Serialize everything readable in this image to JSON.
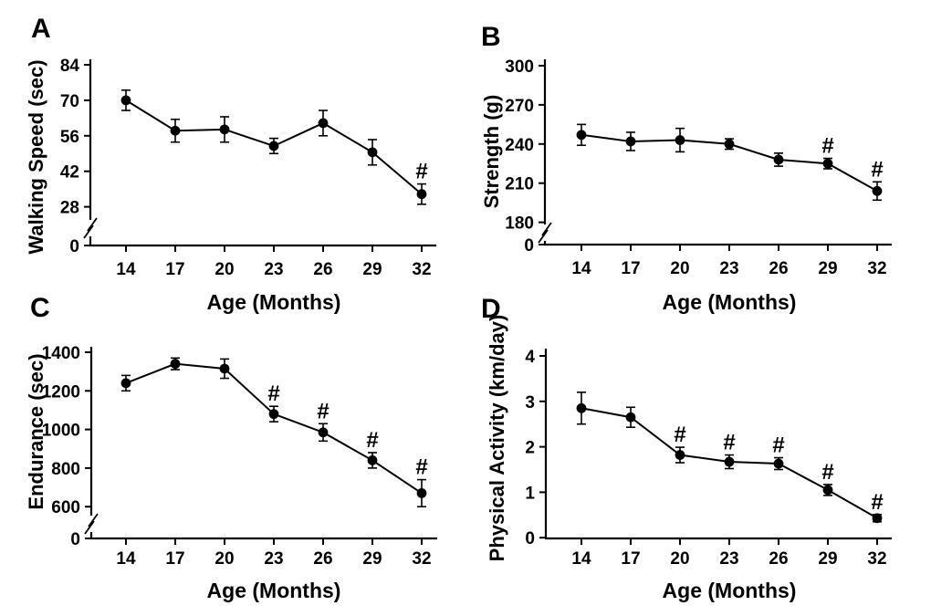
{
  "figure": {
    "background_color": "#ffffff",
    "ink_color": "#000000",
    "significance_symbol": "#"
  },
  "chart_data": [
    {
      "panel_label": "A",
      "type": "line",
      "xlabel": "Age (Months)",
      "ylabel": "Walking Speed (sec)",
      "x": [
        14,
        17,
        20,
        23,
        26,
        29,
        32
      ],
      "xticklabels": [
        "14",
        "17",
        "20",
        "23",
        "26",
        "29",
        "32"
      ],
      "series": [
        {
          "name": "walking-speed",
          "marker": "filled-circle",
          "values": [
            70,
            58,
            58.5,
            52,
            61,
            49.5,
            33
          ],
          "errors": [
            4,
            4.5,
            5,
            3,
            5,
            5,
            4
          ]
        }
      ],
      "significance": {
        "symbol": "#",
        "at_x": [
          32
        ]
      },
      "y_ticks_main": [
        28,
        42,
        56,
        70,
        84
      ],
      "y_zero_label": "0",
      "axis_break": true,
      "ylim_main": [
        28,
        84
      ],
      "grid": false
    },
    {
      "panel_label": "B",
      "type": "line",
      "xlabel": "Age (Months)",
      "ylabel": "Strength (g)",
      "x": [
        14,
        17,
        20,
        23,
        26,
        29,
        32
      ],
      "xticklabels": [
        "14",
        "17",
        "20",
        "23",
        "26",
        "29",
        "32"
      ],
      "series": [
        {
          "name": "strength",
          "marker": "filled-circle",
          "values": [
            247,
            242,
            243,
            240,
            228,
            225,
            204
          ],
          "errors": [
            8,
            7,
            9,
            4,
            5,
            4,
            7
          ]
        }
      ],
      "significance": {
        "symbol": "#",
        "at_x": [
          29,
          32
        ]
      },
      "y_ticks_main": [
        180,
        210,
        240,
        270,
        300
      ],
      "y_zero_label": "0",
      "axis_break": true,
      "ylim_main": [
        180,
        300
      ],
      "grid": false
    },
    {
      "panel_label": "C",
      "type": "line",
      "xlabel": "Age (Months)",
      "ylabel": "Endurance (sec)",
      "x": [
        14,
        17,
        20,
        23,
        26,
        29,
        32
      ],
      "xticklabels": [
        "14",
        "17",
        "20",
        "23",
        "26",
        "29",
        "32"
      ],
      "series": [
        {
          "name": "endurance",
          "marker": "filled-circle",
          "values": [
            1240,
            1340,
            1315,
            1080,
            985,
            840,
            670
          ],
          "errors": [
            40,
            30,
            50,
            40,
            45,
            40,
            70
          ]
        }
      ],
      "significance": {
        "symbol": "#",
        "at_x": [
          23,
          26,
          29,
          32
        ]
      },
      "y_ticks_main": [
        600,
        800,
        1000,
        1200,
        1400
      ],
      "y_zero_label": "0",
      "axis_break": true,
      "ylim_main": [
        600,
        1400
      ],
      "grid": false
    },
    {
      "panel_label": "D",
      "type": "line",
      "xlabel": "Age (Months)",
      "ylabel": "Physical Activity (km/day)",
      "x": [
        14,
        17,
        20,
        23,
        26,
        29,
        32
      ],
      "xticklabels": [
        "14",
        "17",
        "20",
        "23",
        "26",
        "29",
        "32"
      ],
      "series": [
        {
          "name": "physical-activity",
          "marker": "filled-circle",
          "values": [
            2.85,
            2.65,
            1.82,
            1.67,
            1.63,
            1.05,
            0.43
          ],
          "errors": [
            0.35,
            0.22,
            0.17,
            0.15,
            0.13,
            0.12,
            0.08
          ]
        }
      ],
      "significance": {
        "symbol": "#",
        "at_x": [
          20,
          23,
          26,
          29,
          32
        ]
      },
      "y_ticks_main": [
        0,
        1,
        2,
        3,
        4
      ],
      "y_zero_label": null,
      "axis_break": false,
      "ylim_main": [
        0,
        4
      ],
      "grid": false
    }
  ]
}
